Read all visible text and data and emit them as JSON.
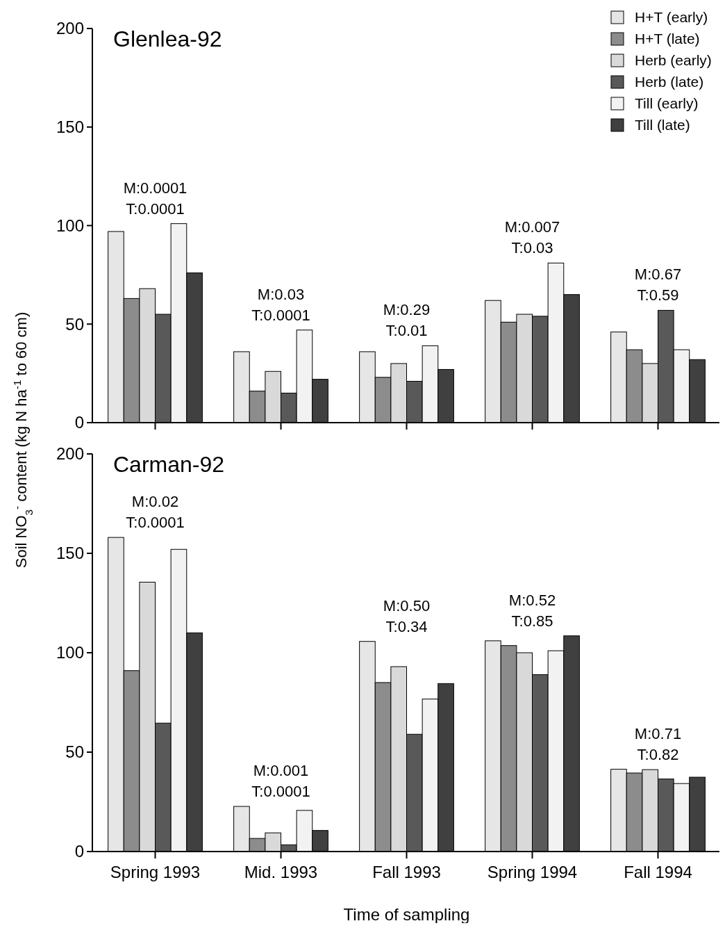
{
  "chart_data": [
    {
      "type": "bar",
      "title": "Glenlea-92",
      "ylabel": "Soil NO$_{3}$$^{-}$ content (kg N ha$^{-1}$ to 60 cm)",
      "categories": [
        null,
        null,
        null,
        null,
        null
      ],
      "ylim": [
        0,
        200
      ],
      "yticks": [
        0,
        50,
        100,
        150,
        200
      ],
      "tick_labels": "y",
      "legend": "top right",
      "grid": false,
      "series": [
        {
          "name": "H+T (early)",
          "color": "#e6e6e6",
          "values": [
            97,
            36,
            36,
            62,
            46
          ]
        },
        {
          "name": "H+T (late)",
          "color": "#8c8c8c",
          "values": [
            63,
            16,
            23,
            51,
            37
          ]
        },
        {
          "name": "Herb (early)",
          "color": "#d9d9d9",
          "values": [
            68,
            26,
            30,
            55,
            30
          ]
        },
        {
          "name": "Herb (late)",
          "color": "#595959",
          "values": [
            55,
            15,
            21,
            54,
            57
          ]
        },
        {
          "name": "Till (early)",
          "color": "#f2f2f2",
          "values": [
            101,
            47,
            39,
            81,
            37
          ]
        },
        {
          "name": "Till (late)",
          "color": "#404040",
          "values": [
            76,
            22,
            27,
            65,
            32
          ]
        }
      ],
      "annotations": [
        "M:0.0001\nT:0.0001",
        "M:0.03\nT:0.0001",
        "M:0.29\nT:0.01",
        "M:0.007\nT:0.03",
        "M:0.67\nT:0.59"
      ]
    },
    {
      "type": "bar",
      "title": "Carman-92",
      "xlabel": "Time of sampling",
      "categories": [
        "Spring 1993",
        "Mid. 1993",
        "Fall 1993",
        "Spring 1994",
        "Fall 1994"
      ],
      "ylim": [
        0,
        200
      ],
      "yticks": [
        0,
        50,
        100,
        150,
        200
      ],
      "grid": false,
      "series": [
        {
          "color": "#e6e6e6",
          "values": [
            158,
            22.7,
            105.7,
            106,
            41.4
          ]
        },
        {
          "color": "#8c8c8c",
          "values": [
            91,
            6.6,
            85,
            103.6,
            39.5
          ]
        },
        {
          "color": "#d9d9d9",
          "values": [
            135.5,
            9.4,
            93,
            100,
            41.2
          ]
        },
        {
          "color": "#595959",
          "values": [
            64.6,
            3.4,
            59,
            89,
            36.5
          ]
        },
        {
          "color": "#f2f2f2",
          "values": [
            152,
            20.7,
            76.7,
            101,
            34.2
          ]
        },
        {
          "color": "#404040",
          "values": [
            110,
            10.6,
            84.5,
            108.5,
            37.4
          ]
        }
      ],
      "annotations": [
        "M:0.02\nT:0.0001",
        "M:0.001\nT:0.0001",
        "M:0.50\nT:0.34",
        "M:0.52\nT:0.85",
        "M:0.71\nT:0.82"
      ]
    }
  ]
}
